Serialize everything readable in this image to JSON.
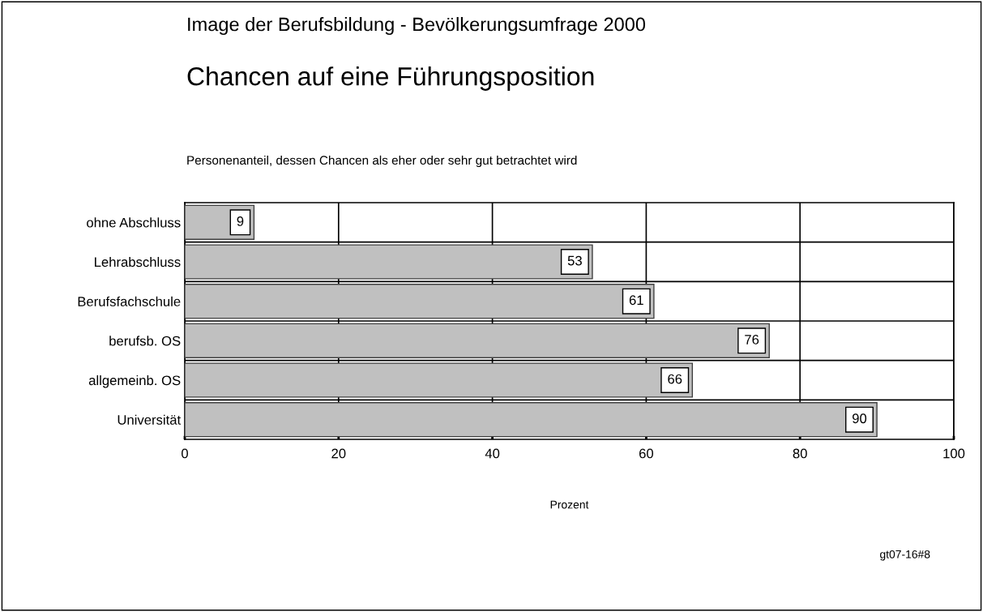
{
  "chart_data": {
    "type": "bar",
    "orientation": "horizontal",
    "title": "Image der Berufsbildung - Bevölkerungsumfrage 2000",
    "subtitle": "Chancen auf eine Führungsposition",
    "annotations": [
      "Personenanteil, dessen Chancen als eher oder sehr gut betrachtet wird",
      "gt07-16#8"
    ],
    "xlabel": "Prozent",
    "categories": [
      "ohne Abschluss",
      "Lehrabschluss",
      "Berufsfachschule",
      "berufsb. OS",
      "allgemeinb. OS",
      "Universität"
    ],
    "values": [
      9,
      53,
      61,
      76,
      66,
      90
    ],
    "color": "#c0c0c0",
    "data_labels": true,
    "xlim": [
      0,
      100
    ],
    "xticks": [
      0,
      20,
      40,
      60,
      80,
      100
    ],
    "grid": true
  }
}
